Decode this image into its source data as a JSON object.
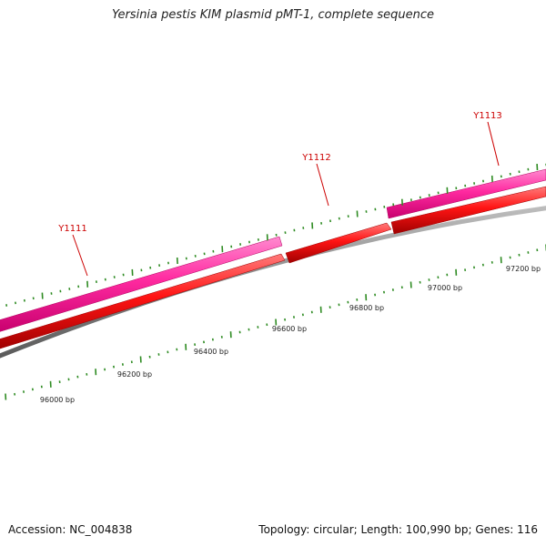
{
  "title": "Yersinia pestis KIM plasmid pMT-1, complete sequence",
  "colors": {
    "background": "#ffffff",
    "gene_forward": "#ff2aa0",
    "gene_forward_dark": "#c8006e",
    "gene_reverse": "#ff1414",
    "gene_reverse_dark": "#a00000",
    "backbone": "#8a8a8a",
    "tick": "#2e8b22",
    "gene_label": "#cc0000",
    "bp_label": "#222222"
  },
  "genes": [
    {
      "name": "Y1111"
    },
    {
      "name": "Y1112"
    },
    {
      "name": "Y1113"
    }
  ],
  "bp_labels": [
    "96000 bp",
    "96200 bp",
    "96400 bp",
    "96600 bp",
    "96800 bp",
    "97000 bp",
    "97200 bp"
  ],
  "footer": {
    "accession": "Accession: NC_004838",
    "summary": "Topology: circular; Length: 100,990 bp; Genes: 116"
  }
}
